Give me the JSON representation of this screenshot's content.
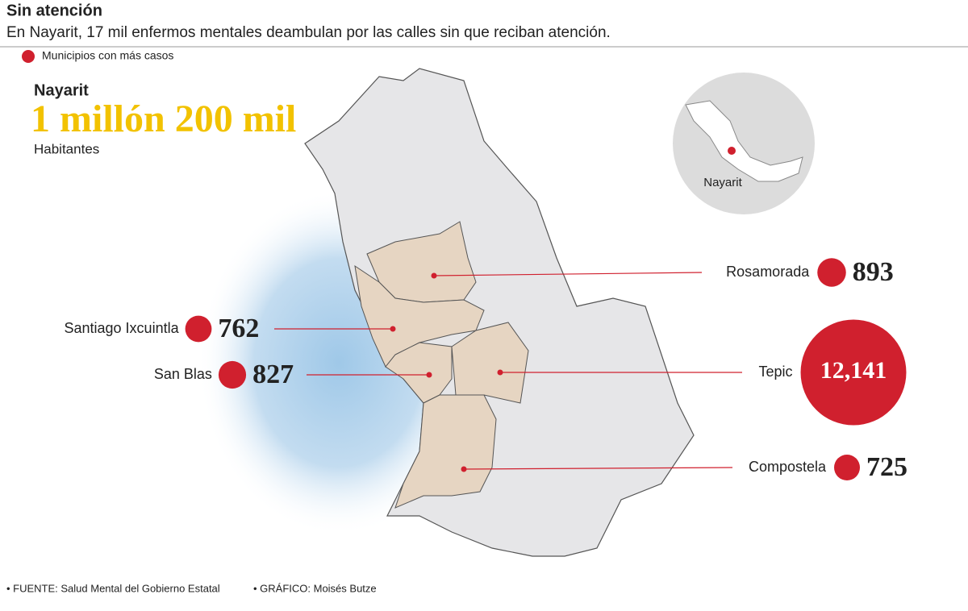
{
  "header": {
    "title": "Sin atención",
    "subtitle": "En Nayarit, 17 mil enfermos mentales deambulan por las calles sin que reciban atención.",
    "legend": "Municipios con más casos"
  },
  "population": {
    "state": "Nayarit",
    "value_label": "1 millón 200 mil",
    "caption": "Habitantes"
  },
  "inset": {
    "label": "Nayarit"
  },
  "municipalities": [
    {
      "name": "Rosamorada",
      "value": 893
    },
    {
      "name": "Santiago Ixcuintla",
      "value": 762
    },
    {
      "name": "San Blas",
      "value": 827
    },
    {
      "name": "Tepic",
      "value": 12141,
      "value_label": "12,141"
    },
    {
      "name": "Compostela",
      "value": 725
    }
  ],
  "footer": {
    "source": "• FUENTE: Salud Mental del Gobierno Estatal",
    "credit": "• GRÁFICO: Moisés Butze"
  }
}
